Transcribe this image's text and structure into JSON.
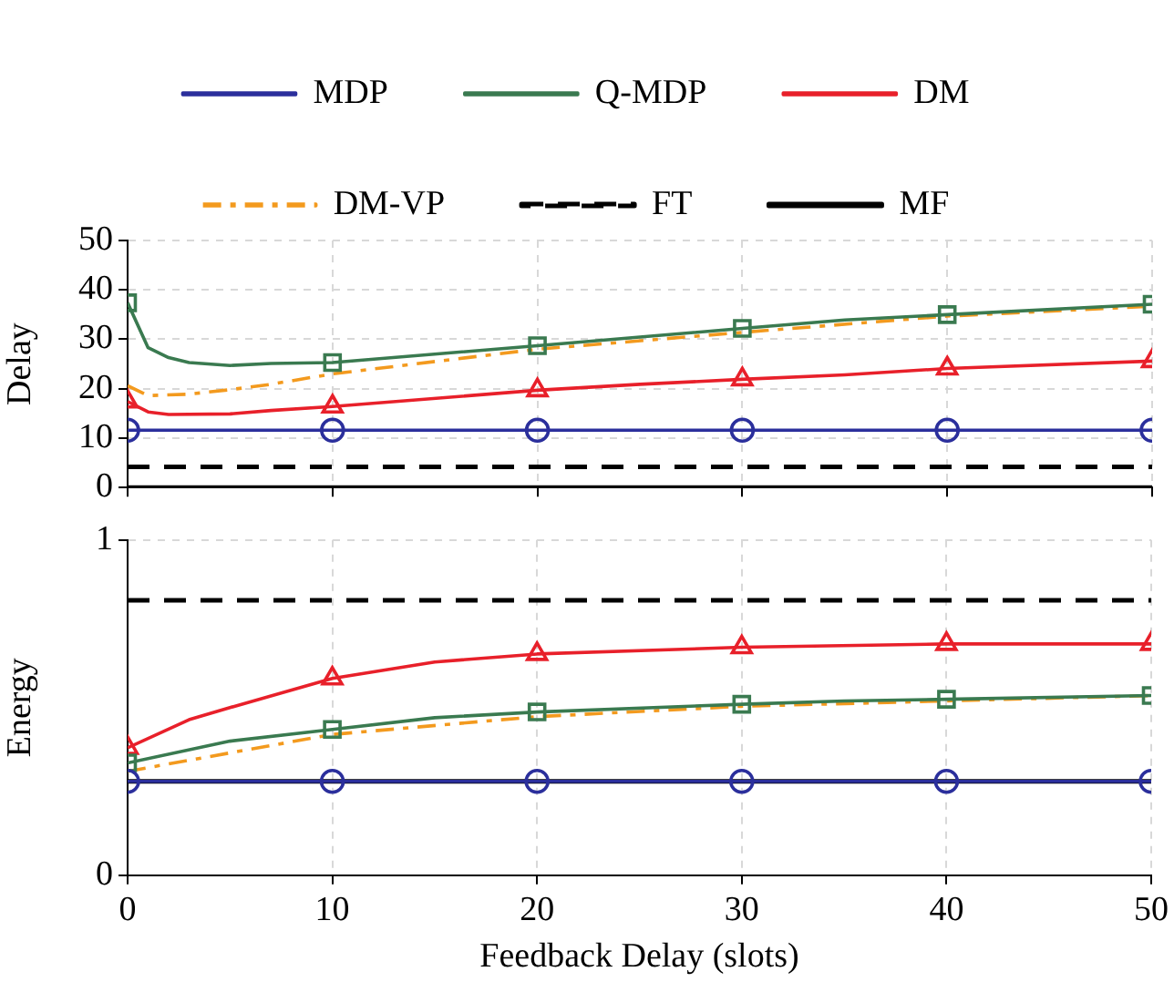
{
  "chart_data": [
    {
      "type": "line",
      "ylabel": "Delay",
      "xlim": [
        0,
        50
      ],
      "xticks": [
        0,
        10,
        20,
        30,
        40,
        50
      ],
      "ylim": [
        0,
        50
      ],
      "yticks": [
        0,
        10,
        20,
        30,
        40,
        50
      ],
      "grid": true,
      "legend": "top",
      "tick_labels": "y",
      "series": [
        {
          "name": "MDP",
          "color": "#2b2f9c",
          "marker": "circle",
          "line_style": "solid",
          "x": [
            0,
            10,
            20,
            30,
            40,
            50
          ],
          "values": [
            11.6,
            11.6,
            11.6,
            11.6,
            11.6,
            11.6
          ]
        },
        {
          "name": "Q-MDP",
          "color": "#3a7a50",
          "marker": "square",
          "line_style": "solid",
          "x": [
            0,
            1,
            2,
            3,
            5,
            7,
            10,
            20,
            30,
            35,
            40,
            50
          ],
          "values": [
            37.4,
            28.3,
            26.3,
            25.3,
            24.7,
            25.1,
            25.3,
            28.7,
            32.2,
            33.9,
            35,
            37.1
          ]
        },
        {
          "name": "DM",
          "color": "#e8202a",
          "marker": "triangle",
          "line_style": "solid",
          "x": [
            0,
            1,
            2,
            5,
            7,
            10,
            20,
            25,
            30,
            35,
            40,
            50
          ],
          "values": [
            17.4,
            15.3,
            14.8,
            14.9,
            15.6,
            16.4,
            19.7,
            20.9,
            21.9,
            22.8,
            24.1,
            25.6
          ]
        },
        {
          "name": "DM-VP",
          "color": "#f39a1e",
          "marker": "none",
          "line_style": "dashdot",
          "x": [
            0,
            1,
            3,
            5,
            7,
            10,
            20,
            30,
            40,
            50
          ],
          "values": [
            20.6,
            18.6,
            18.9,
            19.8,
            20.9,
            23,
            28,
            31.4,
            34.7,
            36.7
          ]
        },
        {
          "name": "FT",
          "color": "#000000",
          "marker": "none",
          "line_style": "dashed",
          "x": [
            0,
            50
          ],
          "values": [
            4.2,
            4.2
          ]
        },
        {
          "name": "MF",
          "color": "#000000",
          "marker": "none",
          "line_style": "solid",
          "x": [
            0,
            50
          ],
          "values": [
            0,
            0
          ]
        }
      ]
    },
    {
      "type": "line",
      "xlabel": "Feedback Delay (slots)",
      "ylabel": "Energy",
      "xlim": [
        0,
        50
      ],
      "xticks": [
        0,
        10,
        20,
        30,
        40,
        50
      ],
      "ylim": [
        0,
        1
      ],
      "yticks": [
        0,
        1
      ],
      "grid": true,
      "series": [
        {
          "color": "#2b2f9c",
          "marker": "circle",
          "line_style": "solid",
          "x": [
            0,
            10,
            20,
            30,
            40,
            50
          ],
          "values": [
            0.28,
            0.28,
            0.28,
            0.28,
            0.28,
            0.28
          ]
        },
        {
          "color": "#3a7a50",
          "marker": "square",
          "line_style": "solid",
          "x": [
            0,
            5,
            10,
            15,
            20,
            30,
            35,
            40,
            50
          ],
          "values": [
            0.335,
            0.4,
            0.435,
            0.47,
            0.487,
            0.51,
            0.52,
            0.525,
            0.536
          ]
        },
        {
          "color": "#e8202a",
          "marker": "triangle",
          "line_style": "solid",
          "x": [
            0,
            3,
            5,
            10,
            15,
            20,
            30,
            40,
            50
          ],
          "values": [
            0.38,
            0.464,
            0.5,
            0.587,
            0.636,
            0.66,
            0.68,
            0.69,
            0.69
          ]
        },
        {
          "color": "#f39a1e",
          "marker": "none",
          "line_style": "dashdot",
          "x": [
            0,
            10,
            20,
            30,
            40,
            50
          ],
          "values": [
            0.31,
            0.42,
            0.473,
            0.504,
            0.52,
            0.536
          ]
        },
        {
          "color": "#000000",
          "marker": "none",
          "line_style": "dashed",
          "x": [
            0,
            50
          ],
          "values": [
            0.82,
            0.82
          ]
        },
        {
          "color": "#000000",
          "marker": "none",
          "line_style": "solid",
          "x": [
            0,
            50
          ],
          "values": [
            0.28,
            0.28
          ]
        }
      ]
    }
  ]
}
